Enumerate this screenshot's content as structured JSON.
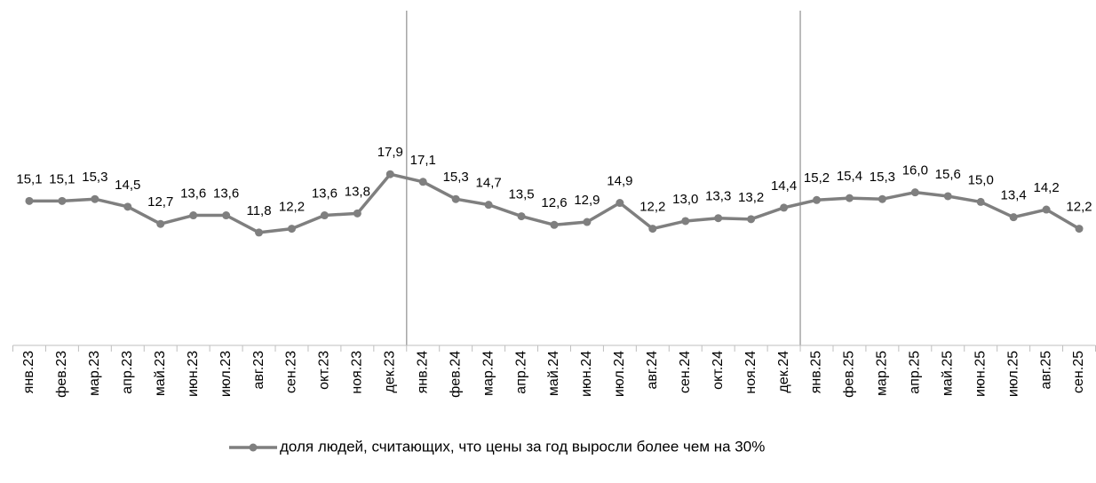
{
  "chart_data": {
    "type": "line",
    "categories": [
      "янв.23",
      "фев.23",
      "мар.23",
      "апр.23",
      "май.23",
      "июн.23",
      "июл.23",
      "авг.23",
      "сен.23",
      "окт.23",
      "ноя.23",
      "дек.23",
      "янв.24",
      "фев.24",
      "мар.24",
      "апр.24",
      "май.24",
      "июн.24",
      "июл.24",
      "авг.24",
      "сен.24",
      "окт.24",
      "ноя.24",
      "дек.24",
      "янв.25",
      "фев.25",
      "мар.25",
      "апр.25",
      "май.25",
      "июн.25",
      "июл.25",
      "авг.25",
      "сен.25"
    ],
    "series": [
      {
        "name": "доля людей, считающих, что цены за год выросли более чем на 30%",
        "color": "#7f7f7f",
        "values": [
          15.1,
          15.1,
          15.3,
          14.5,
          12.7,
          13.6,
          13.6,
          11.8,
          12.2,
          13.6,
          13.8,
          17.9,
          17.1,
          15.3,
          14.7,
          13.5,
          12.6,
          12.9,
          14.9,
          12.2,
          13.0,
          13.3,
          13.2,
          14.4,
          15.2,
          15.4,
          15.3,
          16.0,
          15.6,
          15.0,
          13.4,
          14.2,
          12.2
        ],
        "value_labels": [
          "15,1",
          "15,1",
          "15,3",
          "14,5",
          "12,7",
          "13,6",
          "13,6",
          "11,8",
          "12,2",
          "13,6",
          "13,8",
          "17,9",
          "17,1",
          "15,3",
          "14,7",
          "13,5",
          "12,6",
          "12,9",
          "14,9",
          "12,2",
          "13,0",
          "13,3",
          "13,2",
          "14,4",
          "15,2",
          "15,4",
          "15,3",
          "16,0",
          "15,6",
          "15,0",
          "13,4",
          "14,2",
          "12,2"
        ]
      }
    ],
    "ylim": [
      0,
      35
    ],
    "legend": "bottom"
  }
}
